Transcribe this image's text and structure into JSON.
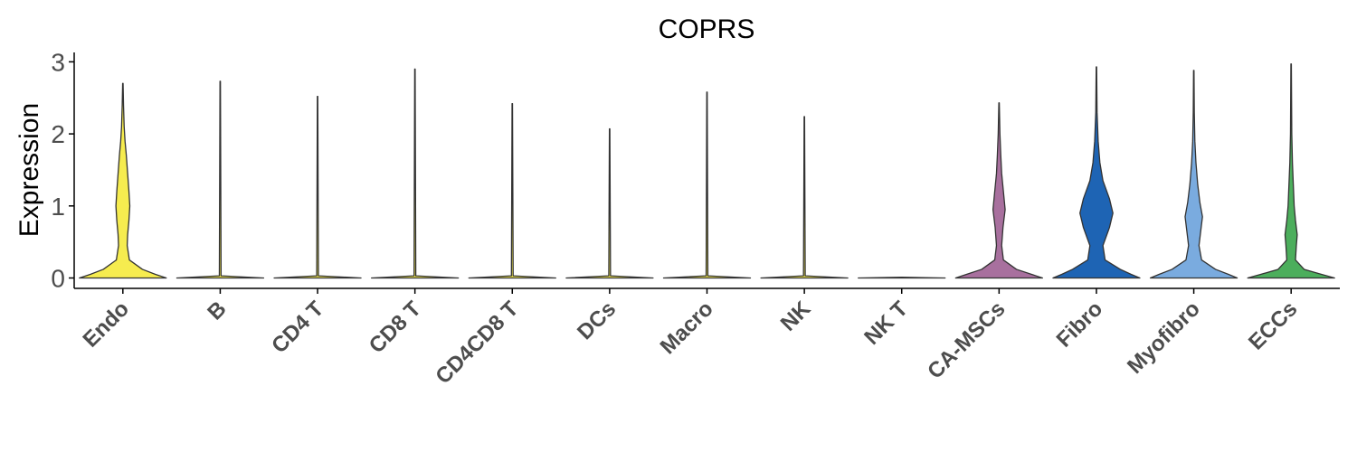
{
  "chart_data": {
    "type": "violin",
    "title": "COPRS",
    "ylabel": "Expression",
    "xlabel": "",
    "ylim": [
      -0.15,
      3.12
    ],
    "yticks": [
      0,
      1,
      2,
      3
    ],
    "grid": false,
    "categories": [
      "Endo",
      "B",
      "CD4 T",
      "CD8 T",
      "CD4CD8 T",
      "DCs",
      "Macro",
      "NK",
      "NK T",
      "CA-MSCs",
      "Fibro",
      "Myofibro",
      "ECCs"
    ],
    "colors": [
      "#F6EC4F",
      "#F6EC4F",
      "#F6EC4F",
      "#F6EC4F",
      "#F6EC4F",
      "#F6EC4F",
      "#F6EC4F",
      "#F6EC4F",
      "#F6EC4F",
      "#A8709E",
      "#1E64B4",
      "#7AABDF",
      "#4CAE5C"
    ],
    "max_values": [
      2.7,
      2.73,
      2.52,
      2.9,
      2.42,
      2.07,
      2.58,
      2.24,
      0.0,
      2.43,
      2.93,
      2.88,
      2.97
    ],
    "density_profiles": [
      [
        [
          0.0,
          1.0
        ],
        [
          0.05,
          0.75
        ],
        [
          0.12,
          0.45
        ],
        [
          0.25,
          0.15
        ],
        [
          0.45,
          0.1
        ],
        [
          0.6,
          0.11
        ],
        [
          0.8,
          0.14
        ],
        [
          1.0,
          0.16
        ],
        [
          1.2,
          0.14
        ],
        [
          1.45,
          0.11
        ],
        [
          1.7,
          0.08
        ],
        [
          1.9,
          0.05
        ],
        [
          2.1,
          0.03
        ],
        [
          2.4,
          0.015
        ],
        [
          2.7,
          0.005
        ]
      ],
      [
        [
          0.0,
          1.0
        ],
        [
          0.03,
          0.02
        ],
        [
          2.73,
          0.005
        ]
      ],
      [
        [
          0.0,
          1.0
        ],
        [
          0.03,
          0.02
        ],
        [
          2.52,
          0.005
        ]
      ],
      [
        [
          0.0,
          1.0
        ],
        [
          0.03,
          0.02
        ],
        [
          2.9,
          0.005
        ]
      ],
      [
        [
          0.0,
          1.0
        ],
        [
          0.03,
          0.02
        ],
        [
          2.42,
          0.005
        ]
      ],
      [
        [
          0.0,
          1.0
        ],
        [
          0.03,
          0.02
        ],
        [
          2.07,
          0.005
        ]
      ],
      [
        [
          0.0,
          1.0
        ],
        [
          0.03,
          0.02
        ],
        [
          2.58,
          0.005
        ]
      ],
      [
        [
          0.0,
          1.0
        ],
        [
          0.03,
          0.02
        ],
        [
          2.24,
          0.005
        ]
      ],
      [
        [
          0.0,
          1.0
        ],
        [
          0.01,
          0.0
        ]
      ],
      [
        [
          0.0,
          1.0
        ],
        [
          0.05,
          0.75
        ],
        [
          0.12,
          0.4
        ],
        [
          0.25,
          0.1
        ],
        [
          0.45,
          0.06
        ],
        [
          0.7,
          0.09
        ],
        [
          0.95,
          0.14
        ],
        [
          1.2,
          0.1
        ],
        [
          1.45,
          0.06
        ],
        [
          1.7,
          0.04
        ],
        [
          2.0,
          0.02
        ],
        [
          2.43,
          0.005
        ]
      ],
      [
        [
          0.0,
          1.0
        ],
        [
          0.05,
          0.8
        ],
        [
          0.12,
          0.55
        ],
        [
          0.25,
          0.2
        ],
        [
          0.45,
          0.15
        ],
        [
          0.7,
          0.3
        ],
        [
          0.9,
          0.38
        ],
        [
          1.1,
          0.3
        ],
        [
          1.35,
          0.15
        ],
        [
          1.6,
          0.08
        ],
        [
          1.9,
          0.04
        ],
        [
          2.3,
          0.015
        ],
        [
          2.93,
          0.005
        ]
      ],
      [
        [
          0.0,
          1.0
        ],
        [
          0.05,
          0.8
        ],
        [
          0.12,
          0.5
        ],
        [
          0.25,
          0.18
        ],
        [
          0.45,
          0.12
        ],
        [
          0.65,
          0.16
        ],
        [
          0.85,
          0.2
        ],
        [
          1.05,
          0.14
        ],
        [
          1.3,
          0.09
        ],
        [
          1.6,
          0.05
        ],
        [
          1.9,
          0.025
        ],
        [
          2.3,
          0.012
        ],
        [
          2.88,
          0.005
        ]
      ],
      [
        [
          0.0,
          1.0
        ],
        [
          0.05,
          0.7
        ],
        [
          0.12,
          0.3
        ],
        [
          0.25,
          0.1
        ],
        [
          0.45,
          0.12
        ],
        [
          0.6,
          0.14
        ],
        [
          0.8,
          0.1
        ],
        [
          1.0,
          0.07
        ],
        [
          1.3,
          0.05
        ],
        [
          1.6,
          0.03
        ],
        [
          2.0,
          0.015
        ],
        [
          2.97,
          0.005
        ]
      ]
    ]
  }
}
